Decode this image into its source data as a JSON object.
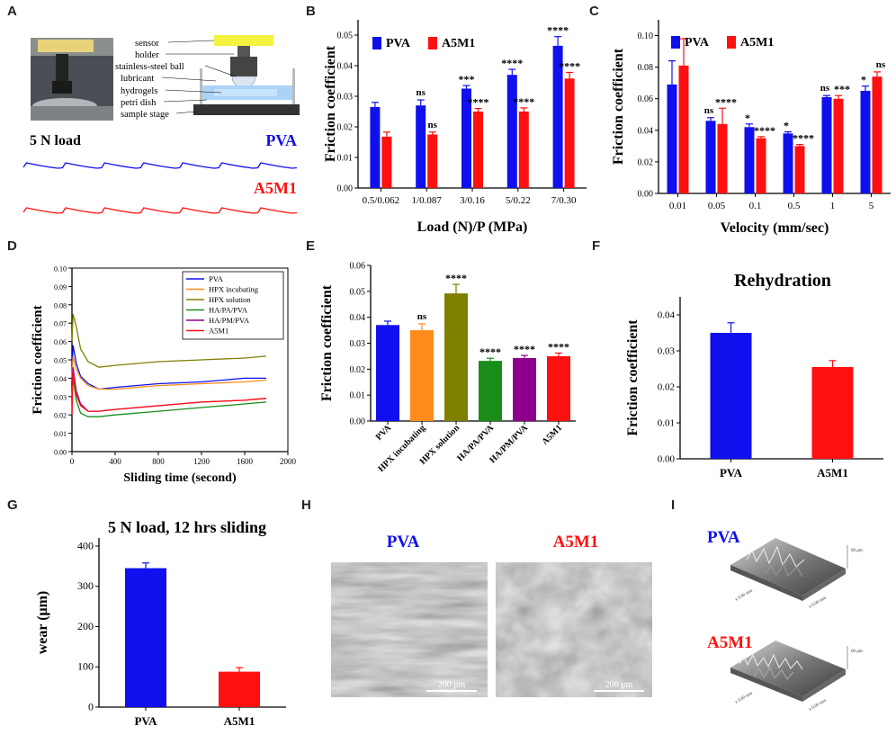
{
  "colors": {
    "pva": "#1010ee",
    "a5m1": "#ff1010",
    "orange": "#ff8c1a",
    "olive": "#7f7f00",
    "green": "#1a8c1a",
    "purple": "#8c008c",
    "axis": "#000000"
  },
  "panelA": {
    "label": "A",
    "load_text": "5 N load",
    "pva": "PVA",
    "a5m1": "A5M1",
    "parts": [
      "sensor",
      "holder",
      "stainless-steel ball",
      "lubricant",
      "hydrogels",
      "petri dish",
      "sample stage"
    ]
  },
  "chart_data": [
    {
      "id": "B",
      "type": "bar",
      "label": "B",
      "ylabel": "Friction coefficient",
      "xlabel": "Load (N)/P (MPa)",
      "ylim": [
        0,
        0.055
      ],
      "yticks": [
        0.0,
        0.01,
        0.02,
        0.03,
        0.04,
        0.05
      ],
      "categories": [
        "0.5/0.062",
        "1/0.087",
        "3/0.16",
        "5/0.22",
        "7/0.30"
      ],
      "series": [
        {
          "name": "PVA",
          "values": [
            0.0265,
            0.027,
            0.0325,
            0.037,
            0.0465
          ],
          "errors": [
            0.0015,
            0.0018,
            0.001,
            0.0018,
            0.003
          ],
          "marks": [
            "",
            "ns",
            "***",
            "****",
            "****"
          ]
        },
        {
          "name": "A5M1",
          "values": [
            0.0168,
            0.0175,
            0.025,
            0.025,
            0.0358
          ],
          "errors": [
            0.0015,
            0.0008,
            0.001,
            0.0012,
            0.002
          ],
          "marks": [
            "",
            "ns",
            "****",
            "****",
            "****"
          ]
        }
      ]
    },
    {
      "id": "C",
      "type": "bar",
      "label": "C",
      "ylabel": "Friction coefficient",
      "xlabel": "Velocity (mm/sec)",
      "ylim": [
        0,
        0.11
      ],
      "yticks": [
        0.0,
        0.02,
        0.04,
        0.06,
        0.08,
        0.1
      ],
      "categories": [
        "0.01",
        "0.05",
        "0.1",
        "0.5",
        "1",
        "5"
      ],
      "series": [
        {
          "name": "PVA",
          "values": [
            0.069,
            0.046,
            0.042,
            0.038,
            0.061,
            0.065
          ],
          "errors": [
            0.015,
            0.002,
            0.002,
            0.001,
            0.001,
            0.003
          ],
          "marks": [
            "",
            "ns",
            "*",
            "*",
            "ns",
            "*"
          ]
        },
        {
          "name": "A5M1",
          "values": [
            0.081,
            0.044,
            0.035,
            0.03,
            0.06,
            0.074
          ],
          "errors": [
            0.017,
            0.01,
            0.001,
            0.001,
            0.002,
            0.003
          ],
          "marks": [
            "",
            "****",
            "****",
            "****",
            "***",
            "ns"
          ]
        }
      ]
    },
    {
      "id": "D",
      "type": "line",
      "label": "D",
      "ylabel": "Friction coefficient",
      "xlabel": "Sliding time (second)",
      "xlim": [
        0,
        2000
      ],
      "ylim": [
        0,
        0.1
      ],
      "xticks": [
        0,
        400,
        800,
        1200,
        1600,
        2000
      ],
      "yticks": [
        0.0,
        0.01,
        0.02,
        0.03,
        0.04,
        0.05,
        0.06,
        0.07,
        0.08,
        0.09,
        0.1
      ],
      "series": [
        {
          "name": "PVA",
          "color": "#1010ee",
          "x": [
            0,
            10,
            40,
            80,
            150,
            250,
            400,
            800,
            1200,
            1600,
            1800
          ],
          "y": [
            0.042,
            0.058,
            0.048,
            0.041,
            0.037,
            0.034,
            0.035,
            0.037,
            0.038,
            0.04,
            0.04
          ]
        },
        {
          "name": "HPX incubating",
          "color": "#ff8c1a",
          "x": [
            0,
            10,
            40,
            80,
            150,
            250,
            400,
            800,
            1200,
            1600,
            1800
          ],
          "y": [
            0.04,
            0.052,
            0.045,
            0.04,
            0.036,
            0.034,
            0.034,
            0.036,
            0.037,
            0.038,
            0.039
          ]
        },
        {
          "name": "HPX solution",
          "color": "#7f7f00",
          "x": [
            0,
            10,
            40,
            80,
            150,
            250,
            400,
            800,
            1200,
            1600,
            1800
          ],
          "y": [
            0.06,
            0.075,
            0.068,
            0.056,
            0.049,
            0.046,
            0.047,
            0.049,
            0.05,
            0.051,
            0.052
          ]
        },
        {
          "name": "HA/PA/PVA",
          "color": "#1a8c1a",
          "x": [
            0,
            10,
            40,
            80,
            150,
            250,
            400,
            800,
            1200,
            1600,
            1800
          ],
          "y": [
            0.03,
            0.04,
            0.028,
            0.021,
            0.019,
            0.019,
            0.02,
            0.022,
            0.024,
            0.026,
            0.027
          ]
        },
        {
          "name": "HA/PM/PVA",
          "color": "#8c008c",
          "x": [
            0,
            10,
            40,
            80,
            150,
            250,
            400,
            800,
            1200,
            1600,
            1800
          ],
          "y": [
            0.038,
            0.046,
            0.033,
            0.026,
            0.022,
            0.022,
            0.023,
            0.025,
            0.027,
            0.028,
            0.029
          ]
        },
        {
          "name": "A5M1",
          "color": "#ff1010",
          "x": [
            0,
            10,
            40,
            80,
            150,
            250,
            400,
            800,
            1200,
            1600,
            1800
          ],
          "y": [
            0.02,
            0.044,
            0.031,
            0.025,
            0.022,
            0.022,
            0.023,
            0.025,
            0.027,
            0.028,
            0.029
          ]
        }
      ]
    },
    {
      "id": "E",
      "type": "bar",
      "label": "E",
      "ylabel": "Friction coefficient",
      "ylim": [
        0,
        0.06
      ],
      "yticks": [
        0.0,
        0.01,
        0.02,
        0.03,
        0.04,
        0.05,
        0.06
      ],
      "categories": [
        "PVA",
        "HPX incubating",
        "HPX solution",
        "HA/PA/PVA",
        "HA/PM/PVA",
        "A5M1"
      ],
      "values": [
        0.037,
        0.035,
        0.0492,
        0.0232,
        0.0243,
        0.025
      ],
      "errors": [
        0.0015,
        0.0025,
        0.0035,
        0.001,
        0.001,
        0.0012
      ],
      "marks": [
        "",
        "ns",
        "****",
        "****",
        "****",
        "****"
      ],
      "colors": [
        "#1010ee",
        "#ff8c1a",
        "#7f7f00",
        "#1a8c1a",
        "#8c008c",
        "#ff1010"
      ]
    },
    {
      "id": "F",
      "type": "bar",
      "label": "F",
      "title": "Rehydration",
      "ylabel": "Friction coefficient",
      "ylim": [
        0,
        0.045
      ],
      "yticks": [
        0.0,
        0.01,
        0.02,
        0.03,
        0.04
      ],
      "categories": [
        "PVA",
        "A5M1"
      ],
      "values": [
        0.035,
        0.0255
      ],
      "errors": [
        0.0028,
        0.0018
      ],
      "colors": [
        "#1010ee",
        "#ff1010"
      ]
    },
    {
      "id": "G",
      "type": "bar",
      "label": "G",
      "title": "5 N load, 12 hrs sliding",
      "ylabel": "wear (μm)",
      "ylim": [
        0,
        420
      ],
      "yticks": [
        0,
        100,
        200,
        300,
        400
      ],
      "categories": [
        "PVA",
        "A5M1"
      ],
      "values": [
        345,
        88
      ],
      "errors": [
        13,
        10
      ],
      "colors": [
        "#1010ee",
        "#ff1010"
      ]
    }
  ],
  "panelH": {
    "label": "H",
    "left_title": "PVA",
    "right_title": "A5M1",
    "scale": "200 μm"
  },
  "panelI": {
    "label": "I",
    "top_title": "PVA",
    "bottom_title": "A5M1",
    "axis_x": "x 0.00 mm",
    "axis_y": "x 0.00 mm",
    "axis_z": "60 μm"
  }
}
